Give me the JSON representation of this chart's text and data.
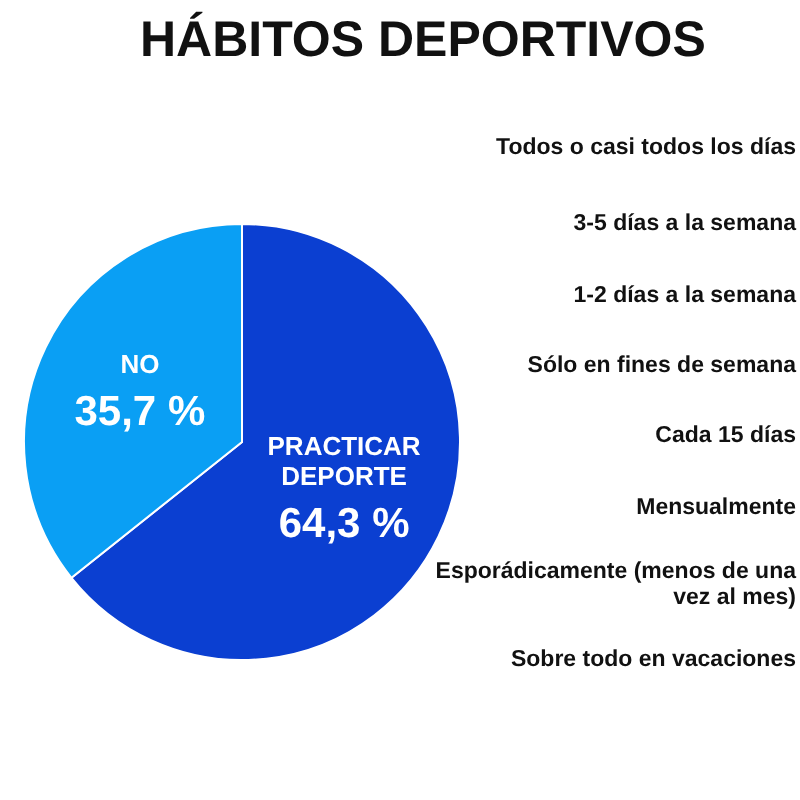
{
  "chart_data": [
    {
      "type": "pie",
      "title": "HÁBITOS DEPORTIVOS",
      "categories": [
        "PRACTICAR DEPORTE",
        "NO"
      ],
      "values": [
        64.3,
        35.7
      ],
      "colors": [
        "#0b3fd1",
        "#0a9ff4"
      ],
      "value_labels": [
        "64,3 %",
        "35,7 %"
      ],
      "legend": false
    },
    {
      "type": "other",
      "annotations": [
        "Todos o casi todos los días",
        "3-5 días a la semana",
        "1-2 días a la semana",
        "Sólo en fines de semana",
        "Cada 15 días",
        "Mensualmente",
        "Esporádicamente (menos de una vez al mes)",
        "Sobre todo en vacaciones"
      ]
    }
  ]
}
